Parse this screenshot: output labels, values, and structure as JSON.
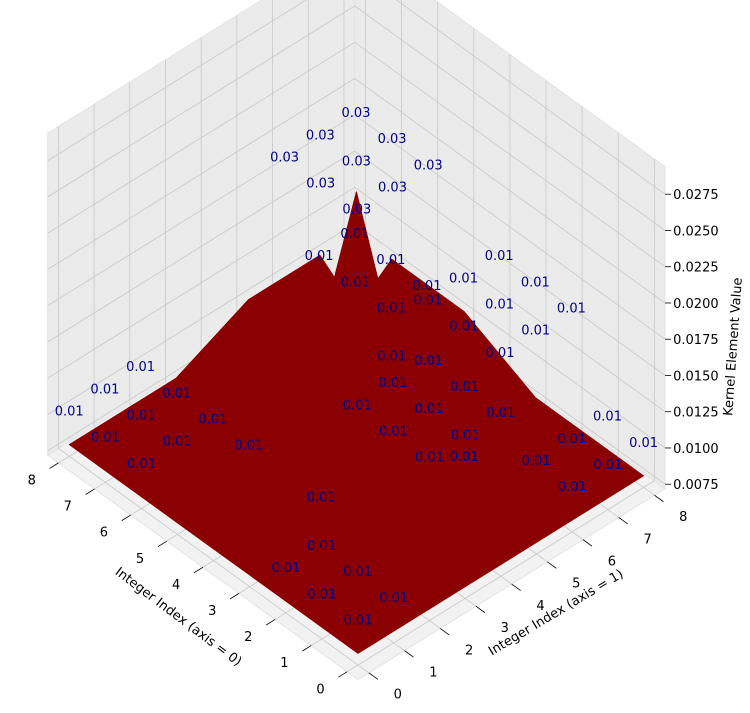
{
  "chart_data": {
    "type": "surface3d",
    "title": "",
    "xlabel": "Integer Index (axis = 0)",
    "ylabel": "Integer Index (axis = 1)",
    "zlabel": "Kernel Element Value",
    "x_ticks": [
      "0",
      "1",
      "2",
      "3",
      "4",
      "5",
      "6",
      "7",
      "8"
    ],
    "y_ticks": [
      "0",
      "1",
      "2",
      "3",
      "4",
      "5",
      "6",
      "7",
      "8"
    ],
    "z_ticks": [
      "0.0075",
      "0.0100",
      "0.0125",
      "0.0150",
      "0.0175",
      "0.0200",
      "0.0225",
      "0.0250",
      "0.0275"
    ],
    "zlim": [
      0.0075,
      0.0275
    ],
    "surface_color": "#8b0000",
    "label_color": "#00008b",
    "grid": true,
    "x_values": [
      0,
      2,
      3,
      4,
      5,
      6,
      8
    ],
    "y_values": [
      0,
      2,
      3,
      4,
      5,
      6,
      8
    ],
    "z_values": [
      [
        0.008,
        0.008,
        0.008,
        0.008,
        0.008,
        0.008,
        0.008
      ],
      [
        0.008,
        0.008,
        0.017,
        0.017,
        0.017,
        0.008,
        0.008
      ],
      [
        0.008,
        0.017,
        0.015,
        0.015,
        0.015,
        0.017,
        0.008
      ],
      [
        0.008,
        0.017,
        0.015,
        0.0265,
        0.015,
        0.017,
        0.008
      ],
      [
        0.008,
        0.017,
        0.015,
        0.015,
        0.015,
        0.017,
        0.008
      ],
      [
        0.008,
        0.008,
        0.017,
        0.017,
        0.017,
        0.008,
        0.008
      ],
      [
        0.008,
        0.008,
        0.008,
        0.008,
        0.008,
        0.008,
        0.008
      ]
    ],
    "point_labels": [
      {
        "text": "0.03",
        "x": 3,
        "y": 3,
        "z": 0.02833
      },
      {
        "text": "0.03",
        "x": 3,
        "y": 4,
        "z": 0.02833
      },
      {
        "text": "0.03",
        "x": 3,
        "y": 5,
        "z": 0.02833
      },
      {
        "text": "0.03",
        "x": 4,
        "y": 3,
        "z": 0.02833
      },
      {
        "text": "0.03",
        "x": 4,
        "y": 4,
        "z": 0.02833
      },
      {
        "text": "0.03",
        "x": 4,
        "y": 5,
        "z": 0.02833
      },
      {
        "text": "0.03",
        "x": 5,
        "y": 3,
        "z": 0.02833
      },
      {
        "text": "0.03",
        "x": 5,
        "y": 4,
        "z": 0.02833
      },
      {
        "text": "0.03",
        "x": 5,
        "y": 5,
        "z": 0.02833
      },
      {
        "text": "0.01",
        "x": 0,
        "y": 2,
        "z": 0.01817
      },
      {
        "text": "0.01",
        "x": 0,
        "y": 3,
        "z": 0.01817
      },
      {
        "text": "0.01",
        "x": 0,
        "y": 4,
        "z": 0.01817
      },
      {
        "text": "0.01",
        "x": 1,
        "y": 2,
        "z": 0.01817
      },
      {
        "text": "0.01",
        "x": 1,
        "y": 3,
        "z": 0.01817
      },
      {
        "text": "0.01",
        "x": 1,
        "y": 4,
        "z": 0.01817
      },
      {
        "text": "0.01",
        "x": 2,
        "y": 2,
        "z": 0.01817
      },
      {
        "text": "0.01",
        "x": 2,
        "y": 3,
        "z": 0.01817
      },
      {
        "text": "0.01",
        "x": 2,
        "y": 4,
        "z": 0.01817
      },
      {
        "text": "0.01",
        "x": 2,
        "y": 6,
        "z": 0.01567
      },
      {
        "text": "0.01",
        "x": 2,
        "y": 7,
        "z": 0.01567
      },
      {
        "text": "0.01",
        "x": 2,
        "y": 8,
        "z": 0.01567
      },
      {
        "text": "0.01",
        "x": 3,
        "y": 6,
        "z": 0.01567
      },
      {
        "text": "0.01",
        "x": 3,
        "y": 7,
        "z": 0.01567
      },
      {
        "text": "0.01",
        "x": 3,
        "y": 8,
        "z": 0.01567
      },
      {
        "text": "0.01",
        "x": 4,
        "y": 6,
        "z": 0.01567
      },
      {
        "text": "0.01",
        "x": 4,
        "y": 7,
        "z": 0.01567
      },
      {
        "text": "0.01",
        "x": 4,
        "y": 8,
        "z": 0.01567
      },
      {
        "text": "0.01",
        "x": 0,
        "y": 0,
        "z": 0.01
      },
      {
        "text": "0.01",
        "x": 0,
        "y": 1,
        "z": 0.01
      },
      {
        "text": "0.01",
        "x": 1,
        "y": 0,
        "z": 0.01
      },
      {
        "text": "0.01",
        "x": 1,
        "y": 1,
        "z": 0.01
      },
      {
        "text": "0.01",
        "x": 2,
        "y": 0,
        "z": 0.01
      },
      {
        "text": "0.01",
        "x": 2,
        "y": 1,
        "z": 0.01
      },
      {
        "text": "0.01",
        "x": 0,
        "y": 6,
        "z": 0.01
      },
      {
        "text": "0.01",
        "x": 0,
        "y": 7,
        "z": 0.01
      },
      {
        "text": "0.01",
        "x": 0,
        "y": 8,
        "z": 0.01
      },
      {
        "text": "0.01",
        "x": 1,
        "y": 6,
        "z": 0.01
      },
      {
        "text": "0.01",
        "x": 1,
        "y": 7,
        "z": 0.01
      },
      {
        "text": "0.01",
        "x": 1,
        "y": 8,
        "z": 0.01
      },
      {
        "text": "0.01",
        "x": 6,
        "y": 0,
        "z": 0.01
      },
      {
        "text": "0.01",
        "x": 6,
        "y": 1,
        "z": 0.01
      },
      {
        "text": "0.01",
        "x": 6,
        "y": 2,
        "z": 0.01
      },
      {
        "text": "0.01",
        "x": 7,
        "y": 0,
        "z": 0.01
      },
      {
        "text": "0.01",
        "x": 7,
        "y": 1,
        "z": 0.01
      },
      {
        "text": "0.01",
        "x": 7,
        "y": 2,
        "z": 0.01
      },
      {
        "text": "0.01",
        "x": 8,
        "y": 0,
        "z": 0.01
      },
      {
        "text": "0.01",
        "x": 8,
        "y": 1,
        "z": 0.01
      },
      {
        "text": "0.01",
        "x": 8,
        "y": 2,
        "z": 0.01
      },
      {
        "text": "0.01",
        "x": 6,
        "y": 7,
        "z": 0.01
      },
      {
        "text": "0.01",
        "x": 6,
        "y": 8,
        "z": 0.01
      },
      {
        "text": "0.01",
        "x": 7,
        "y": 7,
        "z": 0.01
      },
      {
        "text": "0.01",
        "x": 7,
        "y": 8,
        "z": 0.01
      },
      {
        "text": "0.01",
        "x": 8,
        "y": 7,
        "z": 0.01
      },
      {
        "text": "0.01",
        "x": 8,
        "y": 8,
        "z": 0.01
      },
      {
        "text": "0.01",
        "x": 2,
        "y": 5,
        "z": 0.01
      },
      {
        "text": "0.01",
        "x": 3,
        "y": 2,
        "z": 0.01
      },
      {
        "text": "0.01",
        "x": 5,
        "y": 2,
        "z": 0.01
      },
      {
        "text": "0.01",
        "x": 5,
        "y": 6,
        "z": 0.01
      }
    ]
  }
}
